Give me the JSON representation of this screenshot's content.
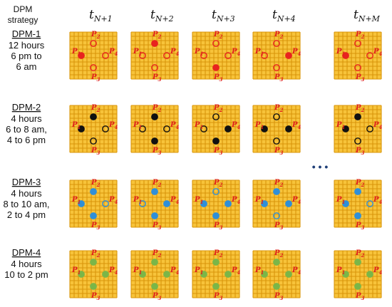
{
  "header": {
    "strategy_line1": "DPM",
    "strategy_line2": "strategy",
    "time_steps": [
      {
        "base": "t",
        "sub": "N+1"
      },
      {
        "base": "t",
        "sub": "N+2"
      },
      {
        "base": "t",
        "sub": "N+3"
      },
      {
        "base": "t",
        "sub": "N+4"
      },
      {
        "base": "t",
        "sub": "N+M"
      }
    ]
  },
  "ellipsis": "• • •",
  "points": [
    {
      "name": "P",
      "sub": "1"
    },
    {
      "name": "P",
      "sub": "2"
    },
    {
      "name": "P",
      "sub": "3"
    },
    {
      "name": "P",
      "sub": "4"
    }
  ],
  "strategies": [
    {
      "id": "dpm-1",
      "title": "DPM-1",
      "lines": [
        "12 hours",
        "6 pm to",
        "6 am"
      ],
      "marker_color": "#e8231f",
      "active": [
        1,
        2,
        3,
        4,
        1
      ]
    },
    {
      "id": "dpm-2",
      "title": "DPM-2",
      "lines": [
        "4 hours",
        "6 to 8 am,",
        "4 to 6 pm"
      ],
      "marker_color": "#111111",
      "active": [
        0,
        0,
        0,
        0,
        0
      ]
    },
    {
      "id": "dpm-3",
      "title": "DPM-3",
      "lines": [
        "4 hours",
        "8 to 10 am,",
        "2 to 4 pm"
      ],
      "marker_color": "#2f8fd8",
      "active": [
        0,
        0,
        0,
        0,
        0
      ]
    },
    {
      "id": "dpm-4",
      "title": "DPM-4",
      "lines": [
        "4 hours",
        "10 to 2 pm"
      ],
      "marker_color": "#7ab648",
      "active": [
        0,
        0,
        0,
        0,
        0
      ]
    }
  ],
  "filled_patterns": {
    "dpm-1": [
      [
        1
      ],
      [
        2
      ],
      [
        3
      ],
      [
        4
      ],
      [
        1
      ]
    ],
    "dpm-2": [
      [
        1,
        2
      ],
      [
        2,
        3
      ],
      [
        3,
        4
      ],
      [
        1,
        4
      ],
      [
        1,
        2
      ]
    ],
    "dpm-3": [
      [
        1,
        2,
        3
      ],
      [
        2,
        3,
        4
      ],
      [
        1,
        3,
        4
      ],
      [
        1,
        2,
        4
      ],
      [
        1,
        2,
        3
      ]
    ],
    "dpm-4": [
      [
        1,
        2,
        3,
        4
      ],
      [
        1,
        2,
        3,
        4
      ],
      [
        1,
        2,
        3,
        4
      ],
      [
        1,
        2,
        3,
        4
      ],
      [
        1,
        2,
        3,
        4
      ]
    ]
  },
  "colors": {
    "grid_fill": "#f7c33a",
    "grid_line": "#d9950a",
    "label_red": "#e0201b"
  }
}
